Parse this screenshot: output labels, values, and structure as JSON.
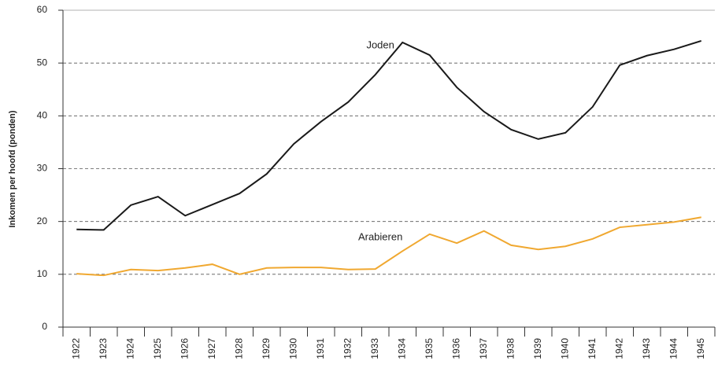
{
  "chart_data": {
    "type": "line",
    "y_label": "Inkomen per hoofd (ponden)",
    "categories": [
      "1922",
      "1923",
      "1924",
      "1925",
      "1926",
      "1927",
      "1928",
      "1929",
      "1930",
      "1931",
      "1932",
      "1933",
      "1934",
      "1935",
      "1936",
      "1937",
      "1938",
      "1939",
      "1940",
      "1941",
      "1942",
      "1943",
      "1944",
      "1945"
    ],
    "series": [
      {
        "name": "Joden",
        "color": "#1a1a1a",
        "values": [
          18.5,
          18.4,
          23.1,
          24.7,
          21.1,
          23.2,
          25.3,
          29.0,
          34.7,
          38.9,
          42.6,
          47.8,
          53.9,
          51.5,
          45.4,
          40.8,
          37.4,
          35.6,
          36.8,
          41.7,
          49.6,
          51.4,
          52.6,
          54.2
        ]
      },
      {
        "name": "Arabieren",
        "color": "#f0a830",
        "values": [
          10.1,
          9.8,
          10.9,
          10.7,
          11.2,
          11.9,
          10.0,
          11.2,
          11.3,
          11.3,
          10.9,
          11.0,
          14.4,
          17.6,
          15.9,
          18.2,
          15.5,
          14.7,
          15.3,
          16.7,
          18.9,
          19.4,
          19.9,
          20.8
        ]
      }
    ],
    "ylim": [
      0,
      60
    ],
    "yticks": [
      0,
      10,
      20,
      30,
      40,
      50,
      60
    ],
    "grid": true
  }
}
